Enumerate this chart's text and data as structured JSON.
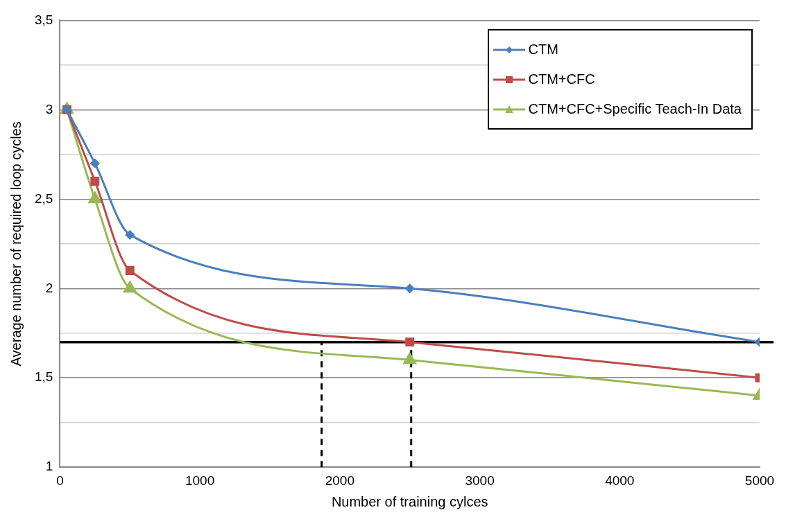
{
  "chart_data": {
    "type": "line",
    "xlabel": "Number of training cylces",
    "ylabel": "Average number of required loop cycles",
    "x": [
      50,
      250,
      500,
      2500,
      5000
    ],
    "series": [
      {
        "name": "CTM",
        "color": "#4a7ebb",
        "marker": "diamond",
        "values": [
          3,
          2.7,
          2.3,
          2.0,
          1.7
        ]
      },
      {
        "name": "CTM+CFC",
        "color": "#be4b48",
        "marker": "square",
        "values": [
          3,
          2.6,
          2.1,
          1.7,
          1.5
        ]
      },
      {
        "name": "CTM+CFC+Specific Teach-In Data",
        "color": "#98b954",
        "marker": "triangle",
        "values": [
          3,
          2.5,
          2.0,
          1.6,
          1.4
        ]
      }
    ],
    "xlim": [
      0,
      5000
    ],
    "xticks": [
      0,
      1000,
      2000,
      3000,
      4000,
      5000
    ],
    "ylim": [
      1,
      3.5
    ],
    "yticks": [
      1,
      {
        "value": 1.25,
        "label": null
      },
      {
        "value": 1.5,
        "label": "1,5"
      },
      {
        "value": 1.75,
        "label": null
      },
      2,
      {
        "value": 2.25,
        "label": null
      },
      {
        "value": 2.5,
        "label": "2,5"
      },
      {
        "value": 2.75,
        "label": null
      },
      3,
      {
        "value": 3.25,
        "label": null
      },
      {
        "value": 3.5,
        "label": "3,5"
      }
    ],
    "grid": "y",
    "legend": "top right",
    "ref_lines": [
      {
        "axis": "y",
        "value": 1.7,
        "color": "#000000",
        "line_style": "solid"
      },
      {
        "axis": "x",
        "value": 1870,
        "color": "#000000",
        "line_style": "dashed"
      },
      {
        "axis": "x",
        "value": 2510,
        "color": "#000000",
        "line_style": "dashed"
      }
    ]
  }
}
